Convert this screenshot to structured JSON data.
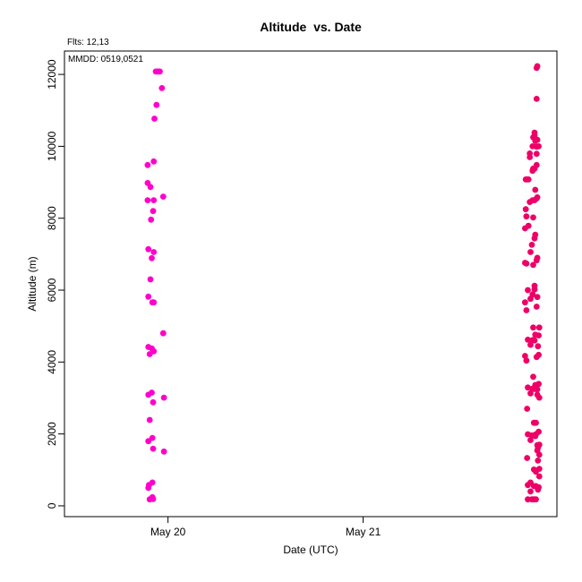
{
  "chart_data": {
    "type": "scatter",
    "title": "Altitude  vs. Date",
    "xlabel": "Date (UTC)",
    "ylabel": "Altitude (m)",
    "annotations": [
      "Flts: 12,13",
      "MMDD: 0519,0521"
    ],
    "x_ticks": [
      {
        "value": "2021-05-20",
        "label": "May 20"
      },
      {
        "value": "2021-05-21",
        "label": "May 21"
      }
    ],
    "y_ticks": [
      0,
      2000,
      4000,
      6000,
      8000,
      10000,
      12000
    ],
    "xlim": [
      "2021-05-19T11:16",
      "2021-05-21T23:50"
    ],
    "ylim": [
      -300,
      12650
    ],
    "grid": false,
    "series": [
      {
        "color": "#ff00cc",
        "points": [
          {
            "x": "2021-05-19T21:30",
            "y": 9480
          },
          {
            "x": "2021-05-19T21:30",
            "y": 8980
          },
          {
            "x": "2021-05-19T21:50",
            "y": 8870
          },
          {
            "x": "2021-05-19T21:30",
            "y": 8500
          },
          {
            "x": "2021-05-19T22:10",
            "y": 8200
          },
          {
            "x": "2021-05-19T21:55",
            "y": 7960
          },
          {
            "x": "2021-05-19T21:35",
            "y": 7140
          },
          {
            "x": "2021-05-19T22:00",
            "y": 6890
          },
          {
            "x": "2021-05-19T21:50",
            "y": 6300
          },
          {
            "x": "2021-05-19T21:35",
            "y": 5820
          },
          {
            "x": "2021-05-19T22:05",
            "y": 5660
          },
          {
            "x": "2021-05-19T21:35",
            "y": 4420
          },
          {
            "x": "2021-05-19T22:00",
            "y": 4380
          },
          {
            "x": "2021-05-19T21:45",
            "y": 4220
          },
          {
            "x": "2021-05-19T21:35",
            "y": 3090
          },
          {
            "x": "2021-05-19T21:45",
            "y": 2390
          },
          {
            "x": "2021-05-19T22:00",
            "y": 3150
          },
          {
            "x": "2021-05-19T21:35",
            "y": 1800
          },
          {
            "x": "2021-05-19T22:05",
            "y": 1890
          },
          {
            "x": "2021-05-19T21:40",
            "y": 580
          },
          {
            "x": "2021-05-19T21:35",
            "y": 500
          },
          {
            "x": "2021-05-19T21:45",
            "y": 180
          },
          {
            "x": "2021-05-19T22:05",
            "y": 650
          },
          {
            "x": "2021-05-19T22:05",
            "y": 240
          },
          {
            "x": "2021-05-19T22:10",
            "y": 190
          },
          {
            "x": "2021-05-19T22:15",
            "y": 8500
          },
          {
            "x": "2021-05-19T22:15",
            "y": 9580
          },
          {
            "x": "2021-05-19T22:15",
            "y": 7060
          },
          {
            "x": "2021-05-19T22:15",
            "y": 5660
          },
          {
            "x": "2021-05-19T22:15",
            "y": 4300
          },
          {
            "x": "2021-05-19T22:10",
            "y": 2880
          },
          {
            "x": "2021-05-19T22:10",
            "y": 1590
          },
          {
            "x": "2021-05-19T22:20",
            "y": 10770
          },
          {
            "x": "2021-05-19T22:35",
            "y": 11150
          },
          {
            "x": "2021-05-19T22:30",
            "y": 12080
          },
          {
            "x": "2021-05-19T22:40",
            "y": 12080
          },
          {
            "x": "2021-05-19T22:50",
            "y": 12080
          },
          {
            "x": "2021-05-19T23:00",
            "y": 12080
          },
          {
            "x": "2021-05-19T23:15",
            "y": 11620
          },
          {
            "x": "2021-05-19T23:25",
            "y": 8600
          },
          {
            "x": "2021-05-19T23:25",
            "y": 4800
          },
          {
            "x": "2021-05-19T23:30",
            "y": 3010
          },
          {
            "x": "2021-05-19T23:30",
            "y": 1510
          }
        ]
      },
      {
        "color": "#ee0066",
        "points": [
          {
            "x": "2021-05-21T20:00",
            "y": 9080
          },
          {
            "x": "2021-05-21T20:10",
            "y": 9080
          },
          {
            "x": "2021-05-21T20:20",
            "y": 9080
          },
          {
            "x": "2021-05-21T20:00",
            "y": 8250
          },
          {
            "x": "2021-05-21T20:05",
            "y": 8050
          },
          {
            "x": "2021-05-21T19:55",
            "y": 7720
          },
          {
            "x": "2021-05-21T20:20",
            "y": 7790
          },
          {
            "x": "2021-05-21T19:55",
            "y": 6760
          },
          {
            "x": "2021-05-21T20:05",
            "y": 6740
          },
          {
            "x": "2021-05-21T20:15",
            "y": 6000
          },
          {
            "x": "2021-05-21T19:55",
            "y": 5660
          },
          {
            "x": "2021-05-21T20:05",
            "y": 5440
          },
          {
            "x": "2021-05-21T19:55",
            "y": 4170
          },
          {
            "x": "2021-05-21T20:05",
            "y": 4040
          },
          {
            "x": "2021-05-21T20:15",
            "y": 4620
          },
          {
            "x": "2021-05-21T20:15",
            "y": 3290
          },
          {
            "x": "2021-05-21T20:10",
            "y": 2700
          },
          {
            "x": "2021-05-21T20:15",
            "y": 1990
          },
          {
            "x": "2021-05-21T20:10",
            "y": 1330
          },
          {
            "x": "2021-05-21T20:15",
            "y": 580
          },
          {
            "x": "2021-05-21T20:15",
            "y": 180
          },
          {
            "x": "2021-05-21T20:30",
            "y": 9700
          },
          {
            "x": "2021-05-21T20:30",
            "y": 9800
          },
          {
            "x": "2021-05-21T20:30",
            "y": 8450
          },
          {
            "x": "2021-05-21T20:35",
            "y": 7060
          },
          {
            "x": "2021-05-21T20:35",
            "y": 5760
          },
          {
            "x": "2021-05-21T20:35",
            "y": 4480
          },
          {
            "x": "2021-05-21T20:35",
            "y": 3130
          },
          {
            "x": "2021-05-21T20:35",
            "y": 1830
          },
          {
            "x": "2021-05-21T20:35",
            "y": 650
          },
          {
            "x": "2021-05-21T20:35",
            "y": 400
          },
          {
            "x": "2021-05-21T20:50",
            "y": 10000
          },
          {
            "x": "2021-05-21T20:50",
            "y": 9320
          },
          {
            "x": "2021-05-21T20:50",
            "y": 8500
          },
          {
            "x": "2021-05-21T20:45",
            "y": 7260
          },
          {
            "x": "2021-05-21T20:50",
            "y": 5880
          },
          {
            "x": "2021-05-21T20:50",
            "y": 4610
          },
          {
            "x": "2021-05-21T20:50",
            "y": 3260
          },
          {
            "x": "2021-05-21T20:45",
            "y": 1960
          },
          {
            "x": "2021-05-21T20:45",
            "y": 180
          },
          {
            "x": "2021-05-21T20:55",
            "y": 10250
          },
          {
            "x": "2021-05-21T20:55",
            "y": 9380
          },
          {
            "x": "2021-05-21T20:55",
            "y": 8020
          },
          {
            "x": "2021-05-21T20:55",
            "y": 6700
          },
          {
            "x": "2021-05-21T20:55",
            "y": 4960
          },
          {
            "x": "2021-05-21T20:55",
            "y": 3590
          },
          {
            "x": "2021-05-21T21:00",
            "y": 2310
          },
          {
            "x": "2021-05-21T21:00",
            "y": 1010
          },
          {
            "x": "2021-05-21T21:00",
            "y": 550
          },
          {
            "x": "2021-05-21T21:00",
            "y": 180
          },
          {
            "x": "2021-05-21T21:05",
            "y": 10300
          },
          {
            "x": "2021-05-21T21:05",
            "y": 10380
          },
          {
            "x": "2021-05-21T21:10",
            "y": 10150
          },
          {
            "x": "2021-05-21T21:05",
            "y": 9380
          },
          {
            "x": "2021-05-21T21:10",
            "y": 8790
          },
          {
            "x": "2021-05-21T21:05",
            "y": 8500
          },
          {
            "x": "2021-05-21T21:05",
            "y": 7440
          },
          {
            "x": "2021-05-21T21:10",
            "y": 7540
          },
          {
            "x": "2021-05-21T21:05",
            "y": 6120
          },
          {
            "x": "2021-05-21T21:05",
            "y": 6020
          },
          {
            "x": "2021-05-21T21:05",
            "y": 4600
          },
          {
            "x": "2021-05-21T21:10",
            "y": 4760
          },
          {
            "x": "2021-05-21T21:05",
            "y": 3250
          },
          {
            "x": "2021-05-21T21:10",
            "y": 3360
          },
          {
            "x": "2021-05-21T21:10",
            "y": 1940
          },
          {
            "x": "2021-05-21T21:15",
            "y": 1990
          },
          {
            "x": "2021-05-21T21:15",
            "y": 550
          },
          {
            "x": "2021-05-21T21:15",
            "y": 950
          },
          {
            "x": "2021-05-21T21:15",
            "y": 180
          },
          {
            "x": "2021-05-21T21:15",
            "y": 2310
          },
          {
            "x": "2021-05-21T21:25",
            "y": 10180
          },
          {
            "x": "2021-05-21T21:20",
            "y": 9990
          },
          {
            "x": "2021-05-21T21:20",
            "y": 9790
          },
          {
            "x": "2021-05-21T21:20",
            "y": 9480
          },
          {
            "x": "2021-05-21T21:20",
            "y": 8550
          },
          {
            "x": "2021-05-21T21:25",
            "y": 8580
          },
          {
            "x": "2021-05-21T21:20",
            "y": 6830
          },
          {
            "x": "2021-05-21T21:25",
            "y": 6900
          },
          {
            "x": "2021-05-21T21:20",
            "y": 5540
          },
          {
            "x": "2021-05-21T21:25",
            "y": 5810
          },
          {
            "x": "2021-05-21T21:20",
            "y": 4140
          },
          {
            "x": "2021-05-21T21:30",
            "y": 4440
          },
          {
            "x": "2021-05-21T21:25",
            "y": 3240
          },
          {
            "x": "2021-05-21T21:25",
            "y": 3090
          },
          {
            "x": "2021-05-21T21:25",
            "y": 1540
          },
          {
            "x": "2021-05-21T21:25",
            "y": 1690
          },
          {
            "x": "2021-05-21T21:30",
            "y": 1620
          },
          {
            "x": "2021-05-21T21:30",
            "y": 1260
          },
          {
            "x": "2021-05-21T21:30",
            "y": 480
          },
          {
            "x": "2021-05-21T21:30",
            "y": 450
          },
          {
            "x": "2021-05-21T21:20",
            "y": 11320
          },
          {
            "x": "2021-05-21T21:20",
            "y": 12180
          },
          {
            "x": "2021-05-21T21:25",
            "y": 12230
          },
          {
            "x": "2021-05-21T21:35",
            "y": 10000
          },
          {
            "x": "2021-05-21T21:35",
            "y": 4740
          },
          {
            "x": "2021-05-21T21:40",
            "y": 4960
          },
          {
            "x": "2021-05-21T21:35",
            "y": 4200
          },
          {
            "x": "2021-05-21T21:35",
            "y": 3390
          },
          {
            "x": "2021-05-21T21:40",
            "y": 3010
          },
          {
            "x": "2021-05-21T21:35",
            "y": 2060
          },
          {
            "x": "2021-05-21T21:40",
            "y": 1700
          },
          {
            "x": "2021-05-21T21:40",
            "y": 1420
          },
          {
            "x": "2021-05-21T21:40",
            "y": 1030
          },
          {
            "x": "2021-05-21T21:40",
            "y": 820
          },
          {
            "x": "2021-05-21T21:35",
            "y": 520
          }
        ]
      }
    ]
  }
}
